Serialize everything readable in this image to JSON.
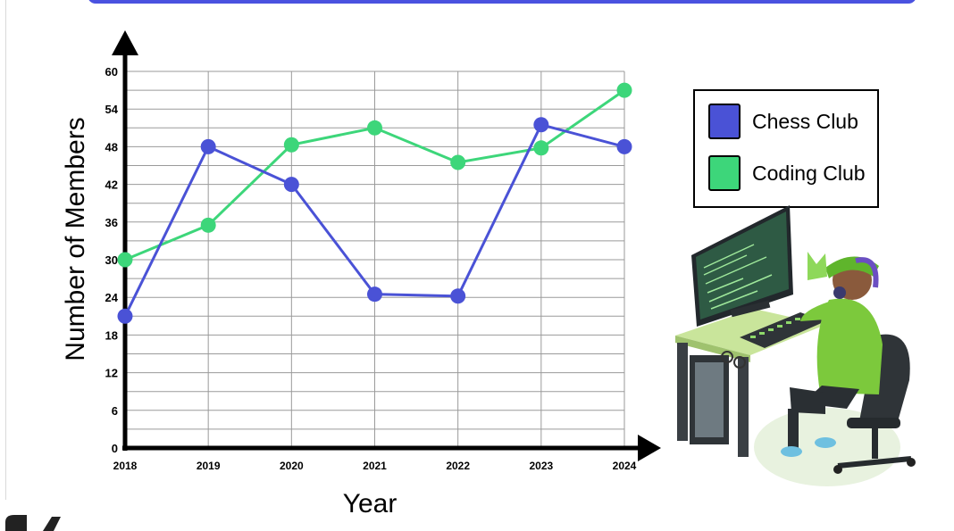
{
  "chart_data": {
    "type": "line",
    "xlabel": "Year",
    "ylabel": "Number of Members",
    "categories": [
      "2018",
      "2019",
      "2020",
      "2021",
      "2022",
      "2023",
      "2024"
    ],
    "ylim": [
      0,
      60
    ],
    "y_ticks": [
      0,
      6,
      12,
      18,
      24,
      30,
      36,
      42,
      48,
      54,
      60
    ],
    "grid": true,
    "legend_position": "top-right",
    "series": [
      {
        "name": "Chess Club",
        "color": "#4a52d6",
        "values": [
          21,
          48,
          42,
          24.5,
          24.2,
          51.5,
          48
        ]
      },
      {
        "name": "Coding Club",
        "color": "#3dd67a",
        "values": [
          30,
          35.5,
          48.3,
          51,
          45.5,
          47.8,
          57
        ]
      }
    ]
  }
}
